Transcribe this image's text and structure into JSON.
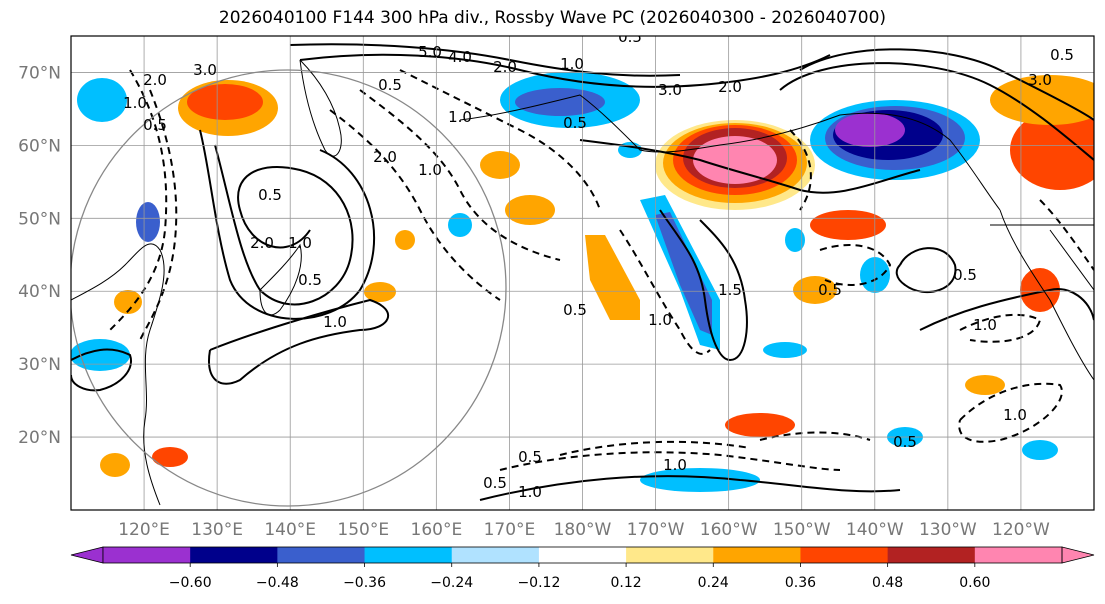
{
  "title": "2026040100 F144 300 hPa div., Rossby Wave PC (2026040300 - 2026040700)",
  "lat_labels": [
    "70°N",
    "60°N",
    "50°N",
    "40°N",
    "30°N",
    "20°N"
  ],
  "lat_values": [
    70,
    60,
    50,
    40,
    30,
    20
  ],
  "lon_labels": [
    "120°E",
    "130°E",
    "140°E",
    "150°E",
    "160°E",
    "170°E",
    "180°W",
    "170°W",
    "160°W",
    "150°W",
    "140°W",
    "130°W",
    "120°W"
  ],
  "lon_values": [
    120,
    130,
    140,
    150,
    160,
    170,
    180,
    190,
    200,
    210,
    220,
    230,
    240
  ],
  "map_extent": {
    "lon_min": 110,
    "lon_max": 250,
    "lat_min": 10,
    "lat_max": 75
  },
  "colorbar": {
    "levels": [
      "−0.60",
      "−0.48",
      "−0.36",
      "−0.24",
      "−0.12",
      "0.12",
      "0.24",
      "0.36",
      "0.48",
      "0.60"
    ],
    "colors": [
      "#9b30d0",
      "#00008b",
      "#3a5fcd",
      "#00bfff",
      "#b0e2ff",
      "#ffffff",
      "#ffe88a",
      "#ffa500",
      "#ff4500",
      "#b22222",
      "#ff85b0"
    ]
  },
  "contour_labels": [
    "5.0",
    "4.0",
    "2.0",
    "1.0",
    "0.5",
    "3.0",
    "2.0",
    "1.0",
    "0.5",
    "0.5",
    "1.0",
    "0.5",
    "1.0",
    "2.0",
    "3.0",
    "2.0",
    "2.0",
    "0.5",
    "1.0",
    "0.5",
    "1.0",
    "1.5",
    "0.5",
    "1.0",
    "0.5",
    "0.5",
    "1.0",
    "0.5",
    "0.5",
    "1.0",
    "0.5",
    "1.0",
    "3.0",
    "0.5",
    "1.0"
  ],
  "icons": {
    "projection_circle": "circle-outline-icon",
    "colorbar_arrows": "triangle-arrow-icon"
  }
}
